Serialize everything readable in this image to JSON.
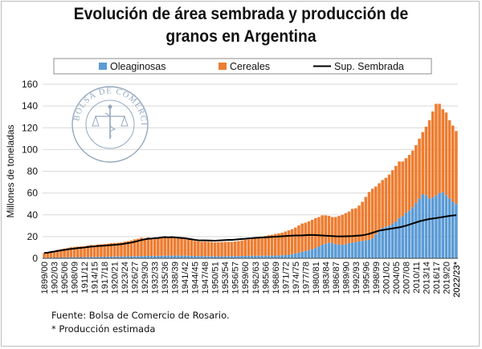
{
  "title_line1": "Evolución de área sembrada y producción de",
  "title_line2": "granos en Argentina",
  "footer": {
    "source": "Fuente: Bolsa de Comercio de Rosario.",
    "note": "* Producción estimada"
  },
  "watermark": {
    "text": "BOLSA DE COMERCIO DE ROSARIO",
    "color": "#8aa0b8"
  },
  "colors": {
    "oleaginosas": "#5b9bd5",
    "cereales": "#ed7d31",
    "sembrada": "#000000",
    "grid": "#d9d9d9"
  },
  "chart_data": {
    "type": "bar",
    "stacked": true,
    "title": "Evolución de área sembrada y producción de granos en Argentina",
    "ylabel": "Millones de toneladas",
    "ylim": [
      0,
      160
    ],
    "yticks": [
      0,
      20,
      40,
      60,
      80,
      100,
      120,
      140,
      160
    ],
    "legend_position": "top",
    "categories_start": 1899,
    "categories_end": 2022,
    "category_label_format": "YYYY/YY",
    "last_category_suffix": "*",
    "tick_label_every": 3,
    "series": [
      {
        "name": "Oleaginosas",
        "type": "bar",
        "values": [
          0.6,
          0.6,
          0.7,
          0.7,
          0.8,
          0.8,
          0.9,
          0.9,
          1,
          1,
          1.1,
          1.1,
          1.2,
          1.2,
          1.3,
          1.3,
          1.4,
          1.4,
          1.5,
          1.5,
          1.6,
          1.6,
          1.7,
          1.7,
          1.8,
          1.8,
          1.9,
          2,
          2,
          2.1,
          2.1,
          2.2,
          2.2,
          2.3,
          2.3,
          2.4,
          2.4,
          2.4,
          2.5,
          2.5,
          2.5,
          2.5,
          2.4,
          2.3,
          2.2,
          2.2,
          2.1,
          2.1,
          2,
          2,
          2,
          1.9,
          1.9,
          1.9,
          2,
          2,
          2,
          2.1,
          2.1,
          2.2,
          2.2,
          2.3,
          2.3,
          2.4,
          2.4,
          2.4,
          2.4,
          2.5,
          2.5,
          2.6,
          2.7,
          2.8,
          3,
          3.3,
          3.8,
          4.5,
          5.3,
          6,
          6.8,
          7.5,
          8.5,
          9.5,
          11,
          12.5,
          13.5,
          14.5,
          14,
          13,
          12.5,
          12.5,
          13,
          14,
          14.5,
          15,
          15.5,
          16,
          16.5,
          17,
          18.5,
          22,
          26,
          28,
          29,
          30,
          32,
          34,
          37,
          39,
          42,
          44,
          47,
          51,
          55,
          59,
          58,
          55,
          56,
          58,
          60,
          61,
          58,
          55,
          52,
          50
        ],
        "color": "#5b9bd5"
      },
      {
        "name": "Cereales",
        "type": "bar",
        "values": [
          4.4,
          4.6,
          5,
          6,
          7,
          7.6,
          8,
          8.8,
          9.2,
          9.5,
          9.7,
          9.9,
          10,
          10.6,
          11,
          10.9,
          11.3,
          11.4,
          11.7,
          11.9,
          12.4,
          12.6,
          12.6,
          12.9,
          13.5,
          14,
          14.6,
          15.5,
          16.1,
          16.9,
          15.2,
          17.1,
          16.6,
          16.9,
          16.9,
          17.4,
          17.8,
          17.3,
          17.4,
          17.1,
          16.3,
          17,
          16.6,
          16.1,
          15.3,
          13.8,
          13.5,
          13.1,
          13.3,
          13.2,
          13,
          12.8,
          12.9,
          13,
          13.1,
          13.2,
          13.1,
          13.4,
          13.8,
          14.2,
          14.8,
          15.3,
          16,
          16.4,
          16.7,
          17.4,
          18.1,
          18.7,
          19.2,
          19.9,
          20.3,
          20.8,
          21.7,
          22.4,
          23,
          23.8,
          25,
          26,
          26,
          26.5,
          27,
          27.5,
          27,
          27,
          26,
          24.5,
          24,
          25,
          26.5,
          27.5,
          28.5,
          29,
          31,
          31,
          33,
          36,
          40,
          44,
          45.5,
          44,
          43,
          44,
          45,
          47,
          49,
          51,
          52,
          50,
          50,
          51,
          52,
          53,
          55,
          57,
          63,
          72,
          79,
          84,
          82,
          76,
          76,
          72,
          70,
          67
        ],
        "color": "#ed7d31"
      },
      {
        "name": "Sup. Sembrada",
        "type": "line",
        "values": [
          5,
          5.2,
          5.8,
          6.3,
          6.8,
          7.3,
          7.8,
          8.2,
          8.7,
          9,
          9.4,
          9.7,
          10,
          10.4,
          10.8,
          11,
          11.3,
          11.5,
          11.7,
          12,
          12.2,
          12.4,
          12.7,
          13,
          13.5,
          14,
          14.5,
          15.2,
          16,
          16.8,
          17.5,
          18,
          18.2,
          18.5,
          18.7,
          19.2,
          19.5,
          19.3,
          19.5,
          19.3,
          19,
          18.7,
          18.5,
          18,
          17.5,
          17,
          16.6,
          16.5,
          16.5,
          16.4,
          16.3,
          16.2,
          16.4,
          16.6,
          16.8,
          17,
          17,
          17.2,
          17.5,
          17.8,
          18,
          18.3,
          18.5,
          18.8,
          19,
          19.2,
          19.4,
          19.5,
          19.7,
          19.9,
          20.1,
          20.3,
          20.5,
          20.7,
          20.8,
          21,
          21,
          21.1,
          21.3,
          21.5,
          21.5,
          21.4,
          21.2,
          21,
          20.8,
          20.6,
          20.5,
          20.3,
          20.2,
          20.2,
          20.3,
          20.4,
          20.5,
          20.7,
          20.9,
          21.2,
          21.8,
          22.5,
          23.5,
          24.5,
          25.5,
          26,
          26.5,
          27,
          27.5,
          28,
          28.5,
          29.2,
          30,
          31,
          32,
          33,
          34,
          34.8,
          35.5,
          36.1,
          36.6,
          37,
          37.5,
          38,
          38.5,
          39,
          39.4,
          39.6
        ],
        "color": "#000000"
      }
    ]
  }
}
